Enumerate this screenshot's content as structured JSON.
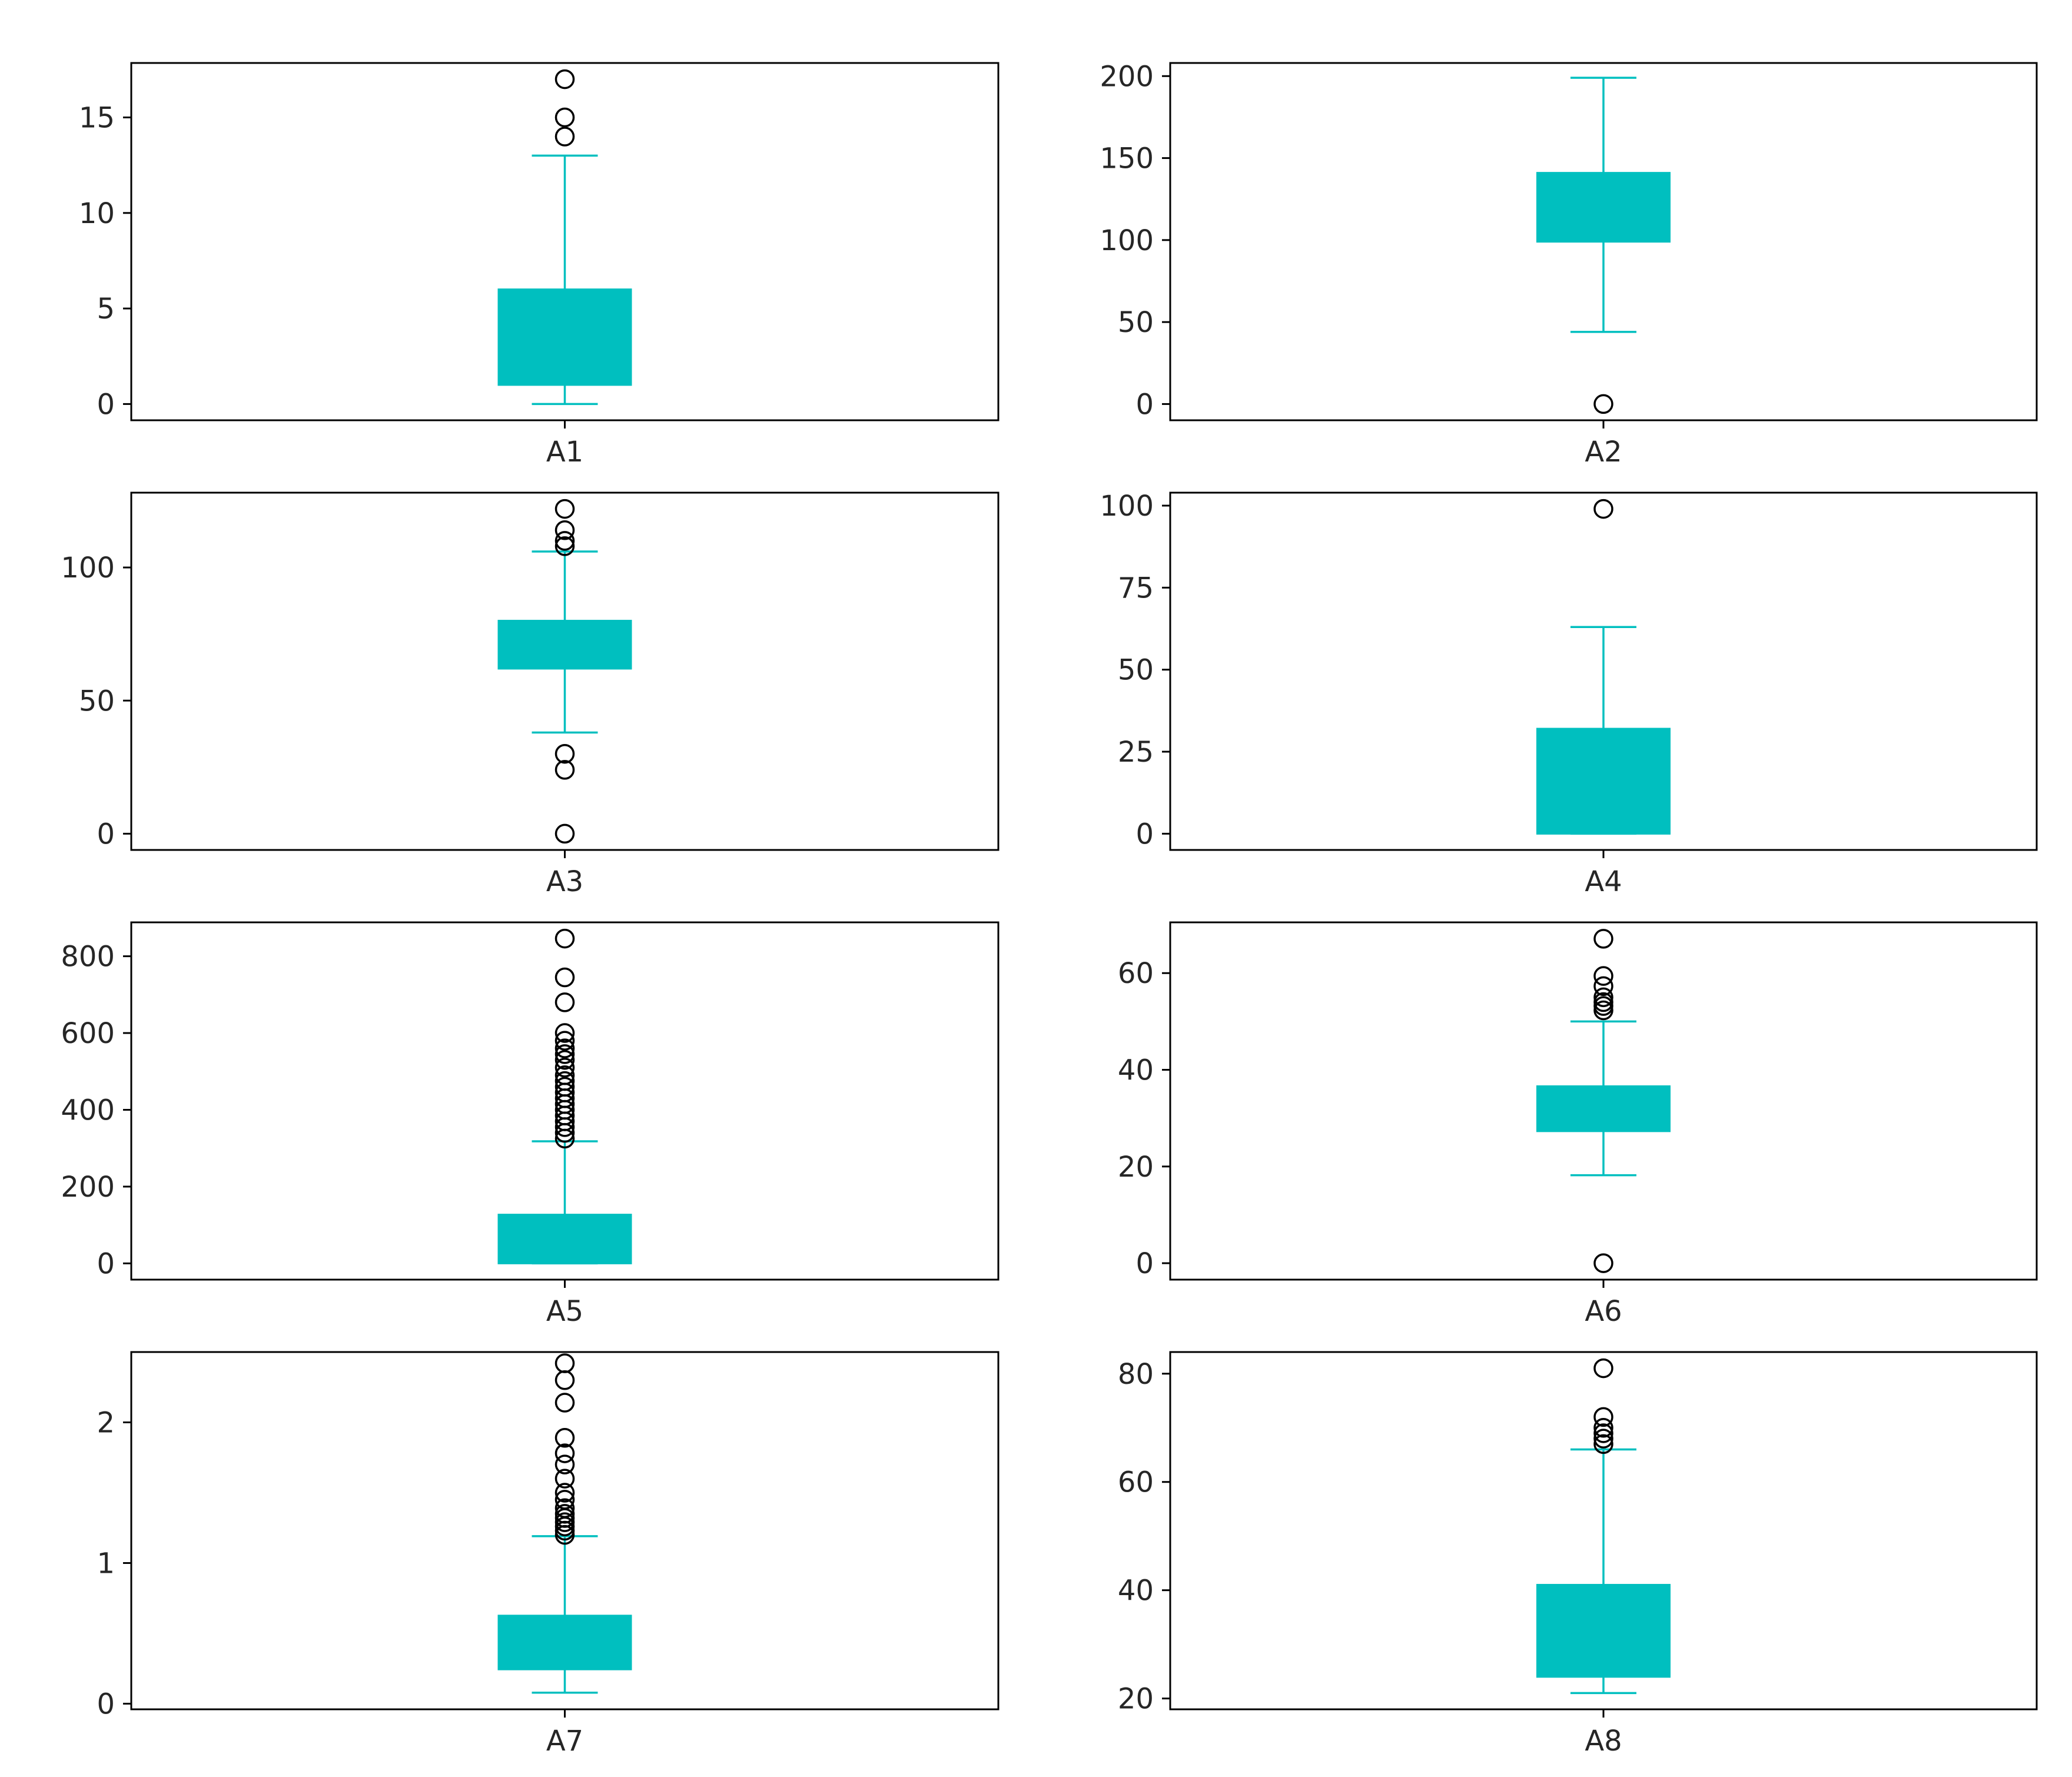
{
  "colors": {
    "box": "#00bfbf",
    "outlier": "#000000",
    "axis": "#000000",
    "text": "#262626"
  },
  "chart_data": [
    {
      "type": "box",
      "label": "A1",
      "yticks": [
        0,
        5,
        10,
        15
      ],
      "ylim": [
        -0.85,
        17.85
      ],
      "whislo": 0,
      "q1": 1,
      "q3": 6,
      "whishi": 13,
      "fliers": [
        14,
        15,
        17
      ]
    },
    {
      "type": "box",
      "label": "A2",
      "yticks": [
        0,
        50,
        100,
        150,
        200
      ],
      "ylim": [
        -9.9,
        208
      ],
      "whislo": 44,
      "q1": 99,
      "q3": 141,
      "whishi": 199,
      "fliers": [
        0
      ]
    },
    {
      "type": "box",
      "label": "A3",
      "yticks": [
        0,
        50,
        100
      ],
      "ylim": [
        -6.1,
        128.1
      ],
      "whislo": 38,
      "q1": 62,
      "q3": 80,
      "whishi": 106,
      "fliers": [
        0,
        24,
        30,
        108,
        110,
        114,
        122
      ]
    },
    {
      "type": "box",
      "label": "A4",
      "yticks": [
        0,
        25,
        50,
        75,
        100
      ],
      "ylim": [
        -4.95,
        103.95
      ],
      "whislo": 0,
      "q1": 0,
      "q3": 32,
      "whishi": 63,
      "fliers": [
        99
      ]
    },
    {
      "type": "box",
      "label": "A5",
      "yticks": [
        0,
        200,
        400,
        600,
        800
      ],
      "ylim": [
        -42.3,
        888.3
      ],
      "whislo": 0,
      "q1": 0,
      "q3": 127,
      "whishi": 318,
      "fliers": [
        325,
        340,
        355,
        370,
        385,
        400,
        415,
        430,
        445,
        460,
        475,
        490,
        510,
        530,
        545,
        560,
        580,
        600,
        680,
        745,
        846
      ]
    },
    {
      "type": "box",
      "label": "A6",
      "yticks": [
        0,
        20,
        40,
        60
      ],
      "ylim": [
        -3.4,
        70.5
      ],
      "whislo": 18.2,
      "q1": 27.3,
      "q3": 36.6,
      "whishi": 50,
      "fliers": [
        0,
        52.3,
        53.2,
        54,
        55,
        57.3,
        59.4,
        67.1
      ]
    },
    {
      "type": "box",
      "label": "A7",
      "yticks": [
        0,
        1,
        2
      ],
      "ylim": [
        -0.04,
        2.5
      ],
      "whislo": 0.078,
      "q1": 0.244,
      "q3": 0.626,
      "whishi": 1.191,
      "fliers": [
        1.2,
        1.23,
        1.26,
        1.29,
        1.32,
        1.35,
        1.39,
        1.45,
        1.5,
        1.6,
        1.7,
        1.78,
        1.89,
        2.14,
        2.3,
        2.42
      ]
    },
    {
      "type": "box",
      "label": "A8",
      "yticks": [
        20,
        40,
        60,
        80
      ],
      "ylim": [
        18,
        84
      ],
      "whislo": 21,
      "q1": 24,
      "q3": 41,
      "whishi": 66,
      "fliers": [
        67,
        68,
        69,
        70,
        72,
        81
      ]
    }
  ]
}
